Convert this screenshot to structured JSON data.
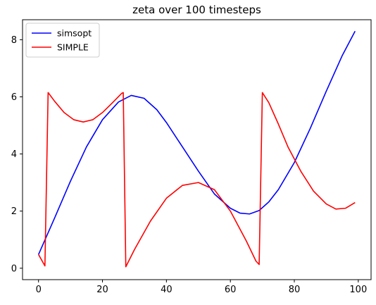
{
  "chart_data": {
    "type": "line",
    "title": "zeta over 100 timesteps",
    "xlabel": "",
    "ylabel": "",
    "xlim": [
      -5,
      104
    ],
    "ylim": [
      -0.4,
      8.7
    ],
    "xticks": [
      0,
      20,
      40,
      60,
      80,
      100
    ],
    "yticks": [
      0,
      2,
      4,
      6,
      8
    ],
    "grid": false,
    "legend_position": "top-left",
    "series": [
      {
        "name": "simsopt",
        "color": "#0000ff",
        "x": [
          0,
          5,
          10,
          15,
          20,
          25,
          29,
          33,
          37,
          40,
          45,
          50,
          55,
          60,
          63,
          66,
          69,
          72,
          75,
          80,
          85,
          90,
          95,
          99
        ],
        "y": [
          0.48,
          1.75,
          3.05,
          4.25,
          5.2,
          5.82,
          6.05,
          5.95,
          5.55,
          5.1,
          4.25,
          3.4,
          2.6,
          2.1,
          1.93,
          1.9,
          2.02,
          2.32,
          2.75,
          3.7,
          4.9,
          6.2,
          7.45,
          8.3
        ]
      },
      {
        "name": "SIMPLE",
        "color": "#ff0000",
        "x": [
          0,
          2,
          3,
          5,
          8,
          11,
          14,
          17,
          20,
          23,
          26,
          26.5,
          27.3,
          30,
          35,
          40,
          45,
          50,
          55,
          60,
          65,
          68,
          69,
          70,
          72,
          75,
          78,
          82,
          86,
          90,
          93,
          96,
          99
        ],
        "y": [
          0.48,
          0.08,
          6.15,
          5.85,
          5.45,
          5.2,
          5.12,
          5.2,
          5.45,
          5.78,
          6.12,
          6.15,
          0.05,
          0.65,
          1.65,
          2.45,
          2.9,
          3.0,
          2.75,
          2.0,
          0.95,
          0.25,
          0.13,
          6.15,
          5.8,
          5.05,
          4.25,
          3.4,
          2.7,
          2.25,
          2.07,
          2.1,
          2.3
        ]
      }
    ]
  }
}
